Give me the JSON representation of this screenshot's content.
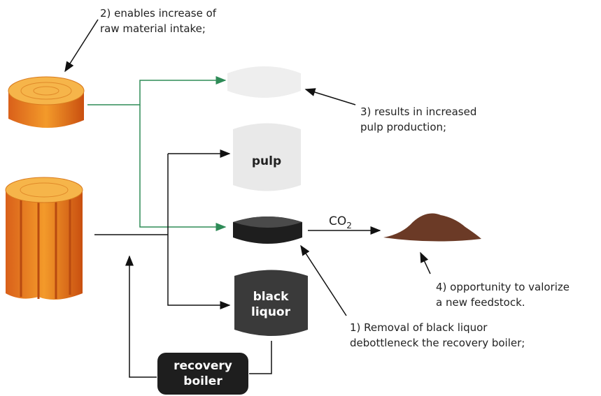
{
  "annotations": [
    {
      "lines": [
        "2) enables increase of",
        "raw material intake;"
      ]
    },
    {
      "lines": [
        "3) results in increased",
        "pulp production;"
      ]
    },
    {
      "lines": [
        "4) opportunity to valorize",
        "a new feedstock."
      ]
    },
    {
      "lines": [
        "1)  Removal of black liquor",
        "debottleneck the recovery boiler;"
      ]
    }
  ],
  "nodes": {
    "pulp": {
      "label": "pulp"
    },
    "black_liquor": {
      "lines": [
        "black",
        "liquor"
      ]
    },
    "recovery_boiler": {
      "lines": [
        "recovery",
        "boiler"
      ]
    }
  },
  "co2": {
    "base": "CO",
    "sub": "2"
  }
}
